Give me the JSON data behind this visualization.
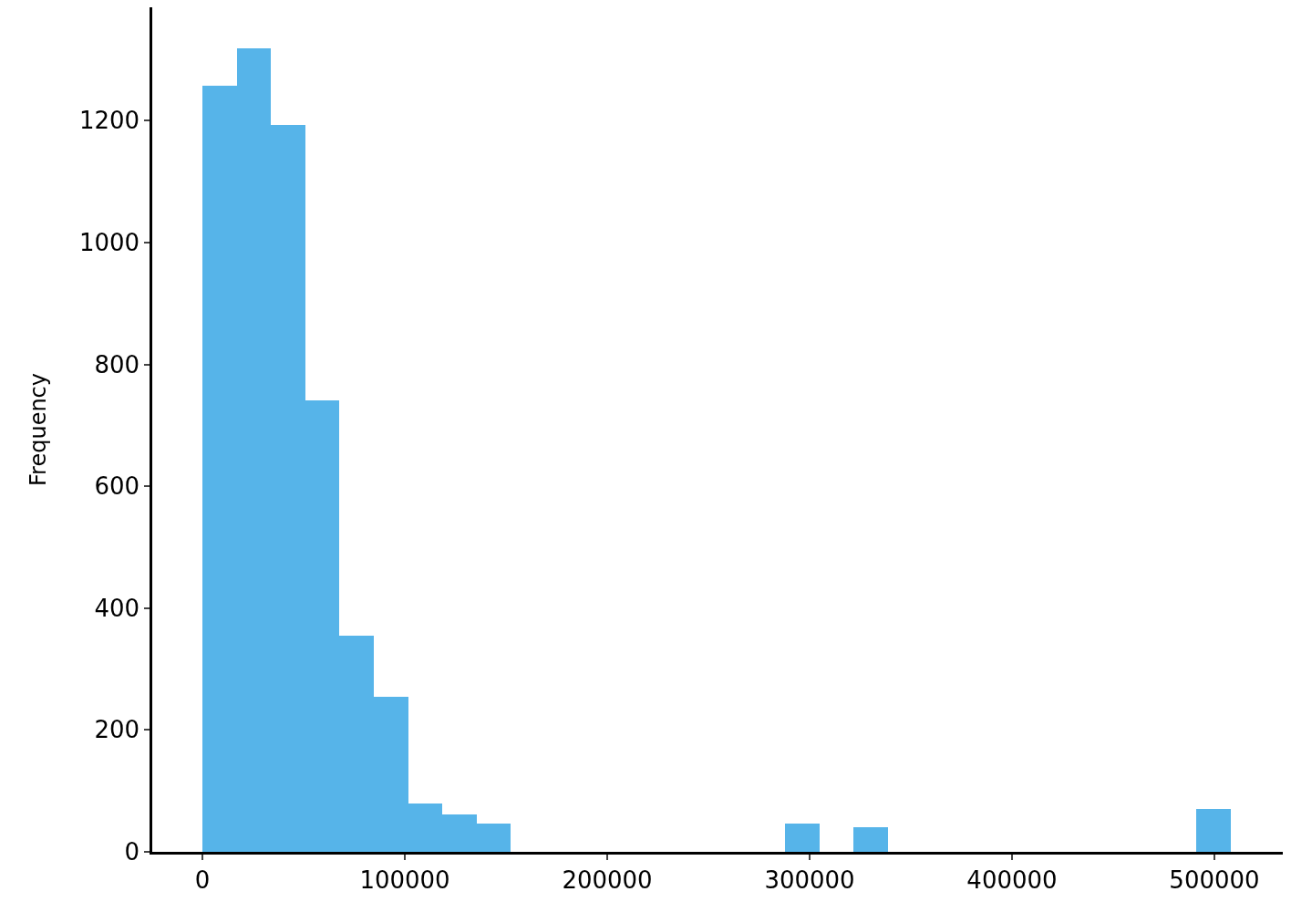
{
  "chart_data": {
    "type": "histogram",
    "ylabel": "Frequency",
    "bins": [
      0,
      16933,
      33867,
      50800,
      67733,
      84667,
      101600,
      118533,
      135467,
      152400,
      169333,
      186267,
      203200,
      220133,
      237067,
      254000,
      270933,
      287867,
      304800,
      321733,
      338667,
      355600,
      372533,
      389467,
      406400,
      423333,
      440267,
      457200,
      474133,
      491067,
      508000
    ],
    "values": [
      1258,
      1318,
      1193,
      741,
      355,
      254,
      79,
      61,
      46,
      0,
      0,
      0,
      0,
      0,
      0,
      0,
      0,
      46,
      0,
      40,
      0,
      0,
      0,
      0,
      0,
      0,
      0,
      0,
      0,
      70
    ],
    "color": "#56b4e9",
    "xlim": [
      -24800,
      533800
    ],
    "xticks": [
      0,
      100000,
      200000,
      300000,
      400000,
      500000
    ],
    "ylim": [
      0,
      1386
    ],
    "yticks": [
      0,
      200,
      400,
      600,
      800,
      1000,
      1200
    ],
    "grid": false,
    "legend": false
  }
}
